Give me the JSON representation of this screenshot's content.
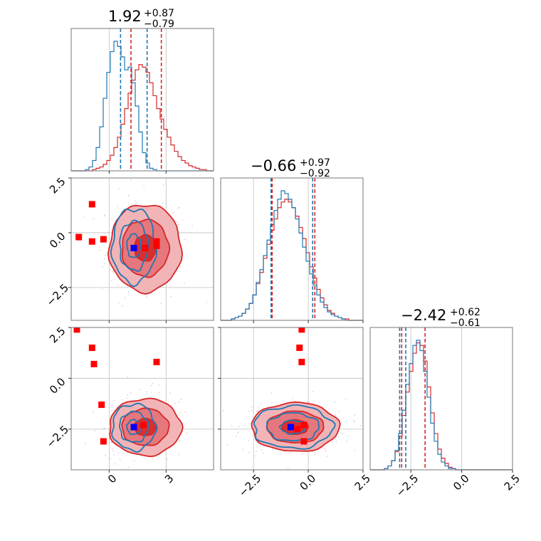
{
  "chart_data": {
    "type": "corner",
    "parameters": [
      {
        "range": [
          -2,
          5.5
        ],
        "ticks": [
          0,
          3
        ],
        "tick_labels": [
          "0",
          "3"
        ]
      },
      {
        "range": [
          -4,
          2.5
        ],
        "ticks": [
          -2.5,
          0.0,
          2.5
        ],
        "tick_labels": [
          "−2.5",
          "0.0",
          "2.5"
        ]
      },
      {
        "range": [
          -4.5,
          2.5
        ],
        "ticks": [
          -2.5,
          0.0,
          2.5
        ],
        "tick_labels": [
          "−2.5",
          "0.0",
          "2.5"
        ]
      }
    ],
    "titles": [
      {
        "median": "1.92",
        "plus": "+0.87",
        "minus": "−0.79"
      },
      {
        "median": "−0.66",
        "plus": "+0.97",
        "minus": "−0.92"
      },
      {
        "median": "−2.42",
        "plus": "+0.62",
        "minus": "−0.61"
      }
    ],
    "colors": {
      "red": "#d62728",
      "blue": "#1f77b4",
      "red_marker": "#ff0000",
      "blue_marker": "#0000ff"
    },
    "quantiles": {
      "red": [
        [
          1.15,
          2.75
        ],
        [
          -1.65,
          0.3
        ],
        [
          -2.95,
          -1.8
        ]
      ],
      "blue": [
        [
          0.6,
          2.0
        ],
        [
          -1.7,
          0.2
        ],
        [
          -3.05,
          -2.75
        ]
      ]
    },
    "histograms": [
      {
        "red": [
          0,
          0,
          0,
          0,
          0,
          0,
          1,
          2,
          3,
          5,
          8,
          12,
          18,
          26,
          36,
          48,
          60,
          70,
          78,
          82,
          80,
          76,
          68,
          58,
          48,
          40,
          32,
          26,
          20,
          15,
          11,
          8,
          6,
          4,
          3,
          2,
          1,
          1,
          0,
          0
        ],
        "blue": [
          0,
          0,
          0,
          0,
          1,
          3,
          8,
          18,
          34,
          56,
          76,
          92,
          100,
          96,
          88,
          78,
          80,
          68,
          50,
          30,
          14,
          6,
          2,
          1,
          0,
          0,
          0,
          0,
          0,
          0,
          0,
          0,
          0,
          0,
          0,
          0,
          0,
          0,
          0,
          0
        ]
      },
      {
        "red": [
          0,
          0,
          0,
          1,
          2,
          3,
          5,
          8,
          12,
          18,
          26,
          34,
          44,
          54,
          64,
          72,
          80,
          84,
          86,
          84,
          80,
          74,
          66,
          58,
          48,
          38,
          30,
          22,
          16,
          11,
          7,
          5,
          3,
          2,
          1,
          1,
          0,
          0,
          0,
          0
        ],
        "blue": [
          0,
          0,
          0,
          1,
          2,
          3,
          5,
          8,
          12,
          18,
          27,
          36,
          46,
          57,
          68,
          78,
          86,
          92,
          90,
          86,
          80,
          72,
          62,
          52,
          42,
          33,
          25,
          18,
          13,
          9,
          6,
          4,
          3,
          2,
          1,
          0,
          0,
          0,
          0,
          0
        ]
      },
      {
        "red": [
          0,
          0,
          0,
          0,
          1,
          3,
          7,
          14,
          26,
          42,
          60,
          76,
          90,
          98,
          96,
          84,
          64,
          44,
          28,
          16,
          9,
          5,
          2,
          1,
          0,
          0,
          0,
          0,
          0,
          0,
          0,
          0,
          0,
          0,
          0,
          0,
          0,
          0,
          0,
          0
        ],
        "blue": [
          0,
          0,
          0,
          0,
          1,
          3,
          7,
          15,
          28,
          46,
          66,
          82,
          96,
          100,
          92,
          76,
          56,
          36,
          22,
          12,
          6,
          3,
          1,
          1,
          0,
          0,
          0,
          0,
          0,
          0,
          0,
          0,
          0,
          0,
          0,
          0,
          0,
          0,
          0,
          0
        ]
      }
    ],
    "pairs": [
      {
        "row": 1,
        "col": 0,
        "red_center": [
          1.9,
          -0.7
        ],
        "red_sigma": [
          0.95,
          1.0
        ],
        "blue_center": [
          1.3,
          -0.6
        ],
        "blue_sigma": [
          0.6,
          0.9
        ],
        "red_markers": [
          [
            -1.6,
            -0.2
          ],
          [
            -0.9,
            1.3
          ],
          [
            -0.9,
            -0.4
          ],
          [
            -0.3,
            -0.3
          ],
          [
            1.9,
            -0.7
          ],
          [
            2.5,
            -0.6
          ],
          [
            2.5,
            -0.4
          ]
        ],
        "blue_markers": [
          [
            1.3,
            -0.7
          ]
        ]
      },
      {
        "row": 2,
        "col": 0,
        "red_center": [
          1.9,
          -2.4
        ],
        "red_sigma": [
          0.95,
          0.7
        ],
        "blue_center": [
          1.3,
          -2.4
        ],
        "blue_sigma": [
          0.6,
          0.6
        ],
        "red_markers": [
          [
            -1.7,
            2.4
          ],
          [
            -0.9,
            1.5
          ],
          [
            -0.8,
            0.7
          ],
          [
            -0.4,
            -1.3
          ],
          [
            -0.3,
            -3.1
          ],
          [
            1.8,
            -2.3
          ],
          [
            2.5,
            0.8
          ]
        ],
        "blue_markers": [
          [
            1.3,
            -2.4
          ]
        ]
      },
      {
        "row": 2,
        "col": 1,
        "red_center": [
          -0.6,
          -2.4
        ],
        "red_sigma": [
          1.0,
          0.6
        ],
        "blue_center": [
          -0.7,
          -2.4
        ],
        "blue_sigma": [
          0.95,
          0.55
        ],
        "red_markers": [
          [
            -0.3,
            2.4
          ],
          [
            -0.4,
            1.5
          ],
          [
            -0.3,
            0.8
          ],
          [
            -0.2,
            -2.3
          ],
          [
            -0.5,
            -2.5
          ],
          [
            -0.2,
            -3.1
          ]
        ],
        "blue_markers": [
          [
            -0.8,
            -2.4
          ]
        ]
      }
    ]
  }
}
